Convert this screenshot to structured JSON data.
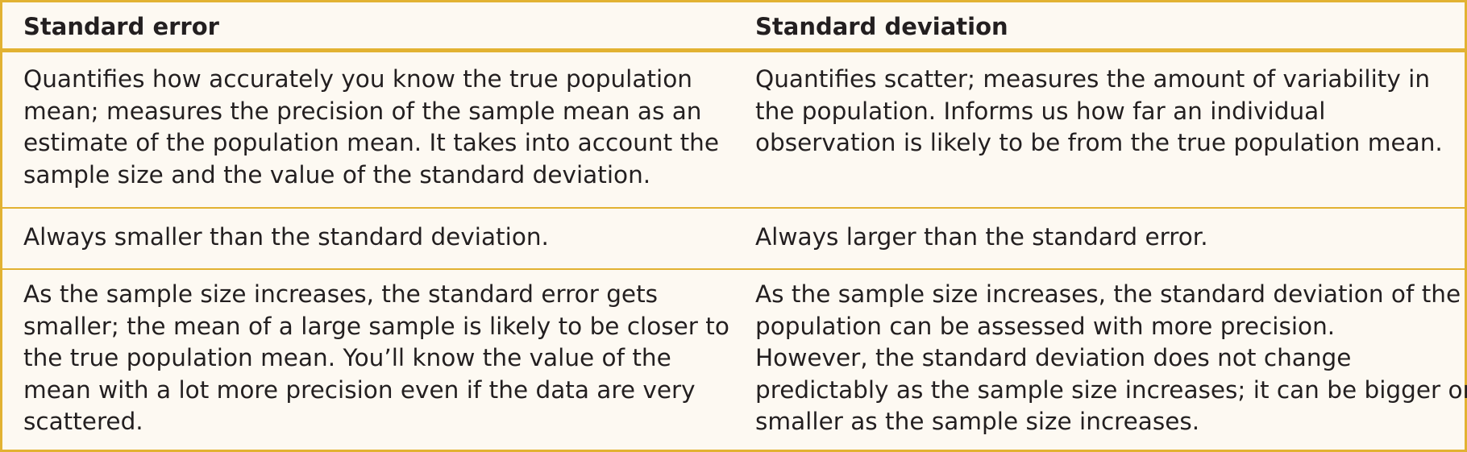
{
  "table": {
    "header": {
      "col1": "Standard error",
      "col2": "Standard deviation"
    },
    "rows": [
      {
        "col1": [
          "Quantifies how accurately you know the true population",
          "mean; measures the precision of the sample mean as an",
          "estimate of the population mean. It takes into account the",
          "sample size and the value of the standard deviation."
        ],
        "col2": [
          "Quantifies scatter; measures the amount of variability in",
          "the population. Informs us how far an individual",
          "observation is likely to be from the true population mean."
        ]
      },
      {
        "col1": [
          "Always smaller than the standard deviation."
        ],
        "col2": [
          "Always larger than the standard error."
        ]
      },
      {
        "col1": [
          "As the sample size increases, the standard error gets",
          "smaller; the mean of a large sample is likely to be closer to",
          "the true population mean. You’ll know the value of the",
          "mean with a lot more precision even if the data are very",
          "scattered."
        ],
        "col2": [
          "As the sample size increases, the standard deviation of the",
          "population can be assessed with more precision.",
          "However, the standard deviation does not change",
          "predictably as the sample size increases; it can be bigger or",
          "smaller as the sample size increases."
        ]
      }
    ],
    "colors": {
      "border": "#e2b232",
      "background": "#fdf9f2",
      "text": "#231f20"
    }
  }
}
